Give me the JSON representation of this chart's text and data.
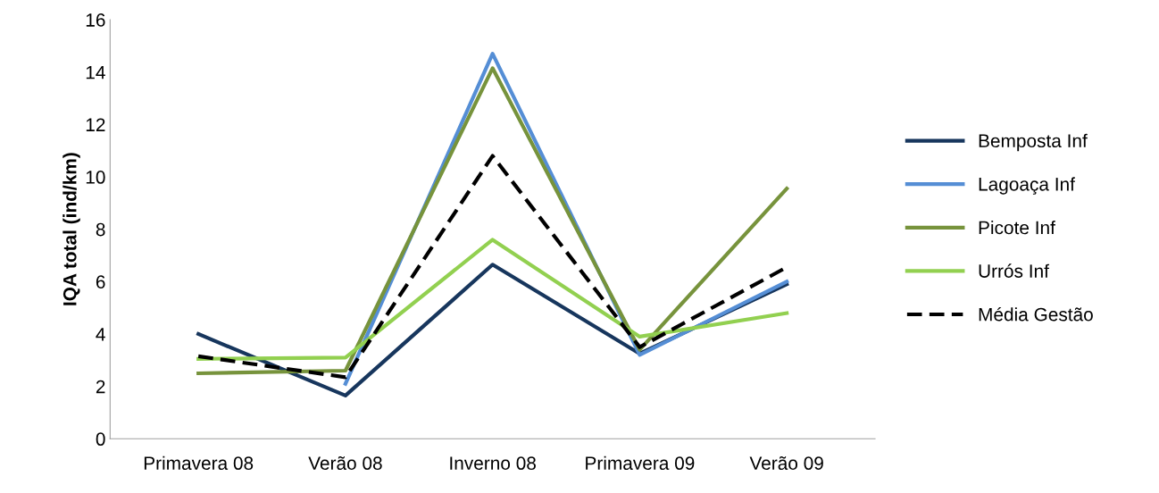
{
  "chart_data": {
    "type": "line",
    "ylabel": "IQA total (ind/km)",
    "categories": [
      "Primavera 08",
      "Verão 08",
      "Inverno 08",
      "Primavera 09",
      "Verão 09"
    ],
    "ylim": [
      0,
      16
    ],
    "yticks": [
      0,
      2,
      4,
      6,
      8,
      10,
      12,
      14,
      16
    ],
    "grid": false,
    "legend": "right",
    "marker": "none",
    "series": [
      {
        "name": "Bemposta Inf",
        "color": "#17365d",
        "values": [
          4.0,
          1.65,
          6.65,
          3.25,
          5.9
        ]
      },
      {
        "name": "Lagoaça Inf",
        "color": "#558ed5",
        "values": [
          null,
          2.1,
          14.7,
          3.2,
          6.0
        ]
      },
      {
        "name": "Picote Inf",
        "color": "#77933c",
        "values": [
          2.5,
          2.6,
          14.15,
          3.4,
          9.55
        ]
      },
      {
        "name": "Urrós Inf",
        "color": "#92d050",
        "values": [
          3.05,
          3.1,
          7.6,
          3.9,
          4.8
        ]
      },
      {
        "name": "Média Gestão",
        "color": "#000000",
        "line_style": "dashed",
        "values": [
          3.15,
          2.35,
          10.8,
          3.5,
          6.55
        ]
      }
    ]
  }
}
